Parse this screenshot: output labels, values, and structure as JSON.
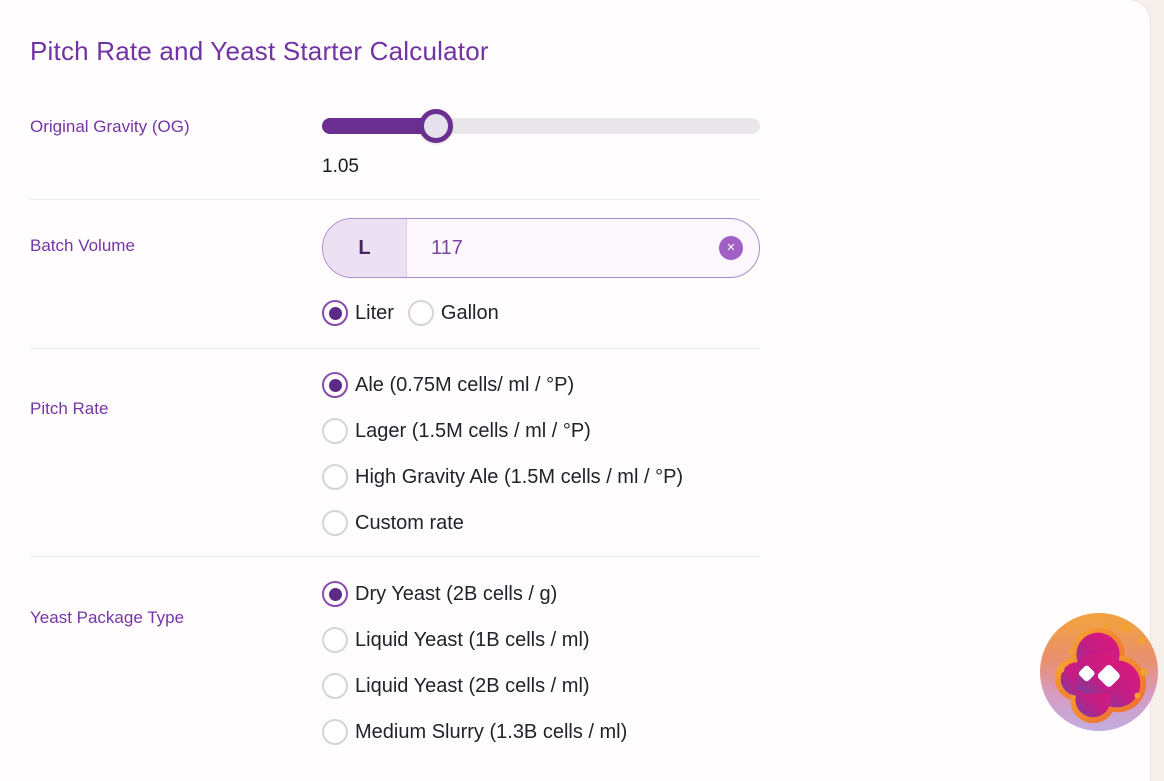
{
  "page": {
    "title": "Pitch Rate and Yeast Starter Calculator"
  },
  "theme": {
    "accent_purple": "#7133a2",
    "deep_purple": "#6b2e91",
    "radio_selected": "#5e2a87",
    "input_border": "#b18bc8",
    "input_prefix_bg": "#ebe1f2",
    "clear_button": "#a160c3",
    "card_bg": "#fffdfd",
    "page_bg": "#f7efeb",
    "logo_palette": [
      "#f5a23c",
      "#ef7a33",
      "#e0187a",
      "#7a3f9e",
      "#c4aede",
      "#ffffff"
    ]
  },
  "original_gravity": {
    "label": "Original Gravity (OG)",
    "value": "1.05",
    "slider_percent": 26
  },
  "batch_volume": {
    "label": "Batch Volume",
    "unit_prefix": "L",
    "value": "117",
    "clear_icon": "✕",
    "units": [
      {
        "label": "Liter",
        "checked": true
      },
      {
        "label": "Gallon",
        "checked": false
      }
    ]
  },
  "pitch_rate": {
    "label": "Pitch Rate",
    "options": [
      {
        "label": "Ale (0.75M cells/ ml / °P)",
        "checked": true
      },
      {
        "label": "Lager (1.5M cells / ml / °P)",
        "checked": false
      },
      {
        "label": "High Gravity Ale (1.5M cells / ml / °P)",
        "checked": false
      },
      {
        "label": "Custom rate",
        "checked": false
      }
    ]
  },
  "yeast_package": {
    "label": "Yeast Package Type",
    "options": [
      {
        "label": "Dry Yeast (2B cells / g)",
        "checked": true
      },
      {
        "label": "Liquid Yeast (1B cells / ml)",
        "checked": false
      },
      {
        "label": "Liquid Yeast (2B cells / ml)",
        "checked": false
      },
      {
        "label": "Medium Slurry (1.3B cells / ml)",
        "checked": false
      }
    ]
  }
}
